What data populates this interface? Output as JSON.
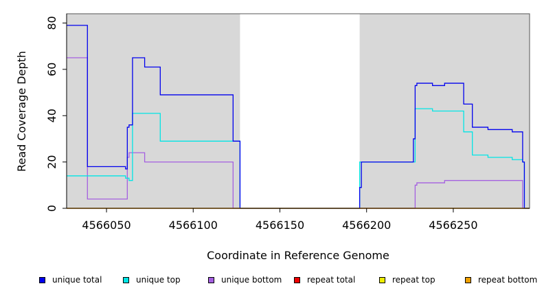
{
  "chart_data": {
    "type": "line",
    "title": "",
    "xlabel": "Coordinate in Reference Genome",
    "ylabel": "Read Coverage Depth",
    "xlim": [
      4566027,
      4566294
    ],
    "ylim": [
      0,
      84
    ],
    "xticks": [
      4566050,
      4566100,
      4566150,
      4566200,
      4566250
    ],
    "yticks": [
      0,
      20,
      40,
      60,
      80
    ],
    "grid": false,
    "background_color": "#d8d8d8",
    "shaded_regions": [
      {
        "x": [
          4566027,
          4566127
        ]
      },
      {
        "x": [
          4566196,
          4566294
        ]
      }
    ],
    "series": [
      {
        "name": "unique total",
        "color": "#0000ee",
        "x": [
          4566027,
          4566039,
          4566039,
          4566061,
          4566061,
          4566062,
          4566062,
          4566063,
          4566063,
          4566065,
          4566065,
          4566072,
          4566072,
          4566081,
          4566081,
          4566123,
          4566123,
          4566127,
          4566127,
          4566196,
          4566196,
          4566197,
          4566197,
          4566227,
          4566227,
          4566228,
          4566228,
          4566229,
          4566229,
          4566238,
          4566238,
          4566245,
          4566245,
          4566256,
          4566256,
          4566261,
          4566261,
          4566270,
          4566270,
          4566284,
          4566284,
          4566290,
          4566290,
          4566291,
          4566291,
          4566294
        ],
        "y": [
          79,
          79,
          18,
          18,
          17,
          17,
          35,
          35,
          36,
          36,
          65,
          65,
          61,
          61,
          49,
          49,
          29,
          29,
          0,
          0,
          9,
          9,
          20,
          20,
          30,
          30,
          53,
          53,
          54,
          54,
          53,
          53,
          54,
          54,
          45,
          45,
          35,
          35,
          34,
          34,
          33,
          33,
          20,
          20,
          0,
          0
        ]
      },
      {
        "name": "unique top",
        "color": "#00e5e5",
        "x": [
          4566027,
          4566061,
          4566061,
          4566063,
          4566063,
          4566065,
          4566065,
          4566081,
          4566081,
          4566123,
          4566123,
          4566127,
          4566127,
          4566196,
          4566196,
          4566228,
          4566228,
          4566238,
          4566238,
          4566256,
          4566256,
          4566261,
          4566261,
          4566270,
          4566270,
          4566284,
          4566284,
          4566290,
          4566290,
          4566291,
          4566291,
          4566294
        ],
        "y": [
          14,
          14,
          13,
          13,
          12,
          12,
          41,
          41,
          29,
          29,
          29,
          29,
          0,
          0,
          20,
          20,
          43,
          43,
          42,
          42,
          33,
          33,
          23,
          23,
          22,
          22,
          21,
          21,
          20,
          20,
          0,
          0
        ]
      },
      {
        "name": "unique bottom",
        "color": "#a45fe0",
        "x": [
          4566027,
          4566039,
          4566039,
          4566062,
          4566062,
          4566063,
          4566063,
          4566072,
          4566072,
          4566123,
          4566123,
          4566228,
          4566228,
          4566229,
          4566229,
          4566245,
          4566245,
          4566290,
          4566290,
          4566294
        ],
        "y": [
          65,
          65,
          4,
          4,
          22,
          22,
          24,
          24,
          20,
          20,
          0,
          0,
          10,
          10,
          11,
          11,
          12,
          12,
          0,
          0
        ]
      },
      {
        "name": "repeat total",
        "color": "#ee0000",
        "x": [
          4566027,
          4566294
        ],
        "y": [
          0,
          0
        ]
      },
      {
        "name": "repeat top",
        "color": "#eeee00",
        "x": [
          4566027,
          4566294
        ],
        "y": [
          0,
          0
        ]
      },
      {
        "name": "repeat bottom",
        "color": "#f0a000",
        "x": [
          4566027,
          4566294
        ],
        "y": [
          0,
          0
        ]
      }
    ]
  }
}
